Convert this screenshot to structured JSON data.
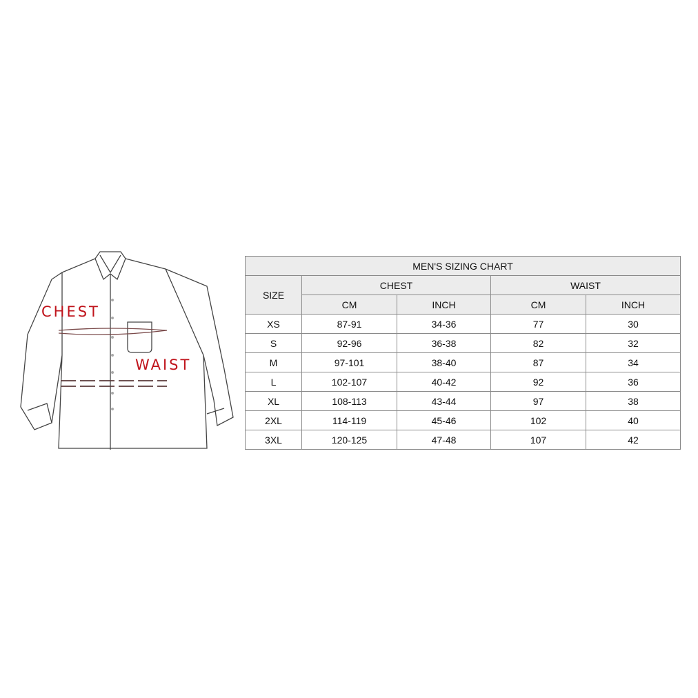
{
  "illustration": {
    "chest_label": "CHEST",
    "waist_label": "WAIST",
    "accent_color": "#c0141c"
  },
  "table": {
    "title": "MEN'S SIZING CHART",
    "size_header": "SIZE",
    "chest_header": "CHEST",
    "waist_header": "WAIST",
    "sub_headers": [
      "CM",
      "INCH",
      "CM",
      "INCH"
    ],
    "rows": [
      {
        "size": "XS",
        "chest_cm": "87-91",
        "chest_in": "34-36",
        "waist_cm": "77",
        "waist_in": "30"
      },
      {
        "size": "S",
        "chest_cm": "92-96",
        "chest_in": "36-38",
        "waist_cm": "82",
        "waist_in": "32"
      },
      {
        "size": "M",
        "chest_cm": "97-101",
        "chest_in": "38-40",
        "waist_cm": "87",
        "waist_in": "34"
      },
      {
        "size": "L",
        "chest_cm": "102-107",
        "chest_in": "40-42",
        "waist_cm": "92",
        "waist_in": "36"
      },
      {
        "size": "XL",
        "chest_cm": "108-113",
        "chest_in": "43-44",
        "waist_cm": "97",
        "waist_in": "38"
      },
      {
        "size": "2XL",
        "chest_cm": "114-119",
        "chest_in": "45-46",
        "waist_cm": "102",
        "waist_in": "40"
      },
      {
        "size": "3XL",
        "chest_cm": "120-125",
        "chest_in": "47-48",
        "waist_cm": "107",
        "waist_in": "42"
      }
    ]
  }
}
